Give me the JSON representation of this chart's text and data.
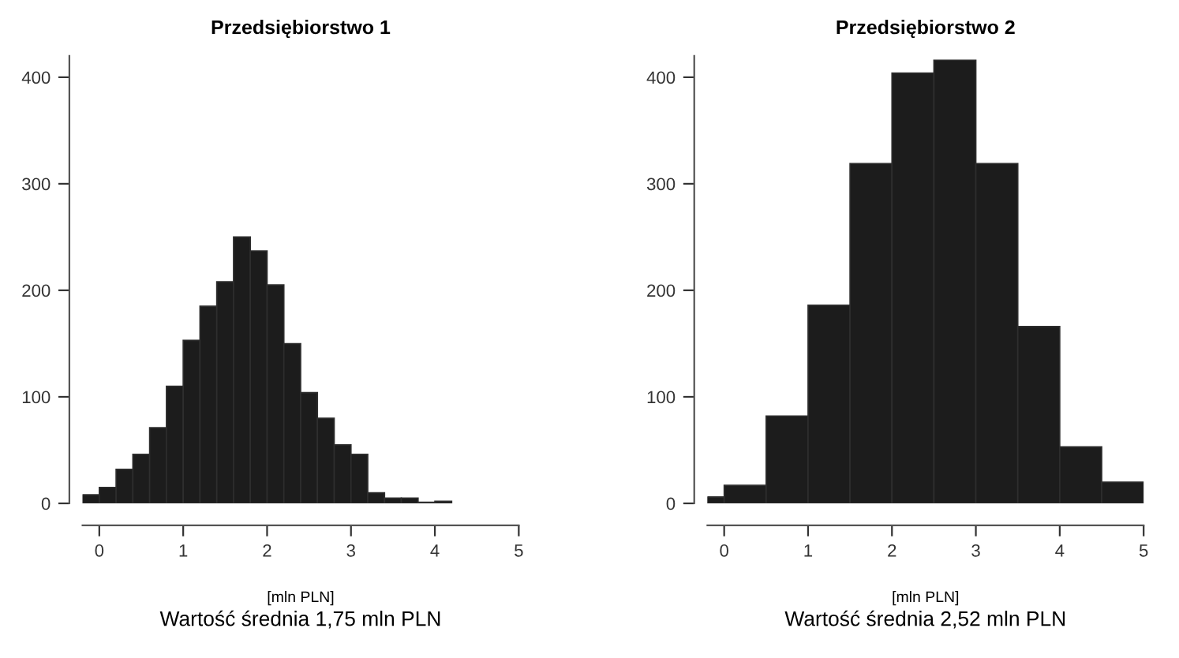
{
  "chart_data": [
    {
      "type": "histogram",
      "title": "Przedsiębiorstwo 1",
      "xlabel": "[mln PLN]",
      "annotations": [
        "Wartość średnia 1,75 mln PLN"
      ],
      "bins": [
        -0.2,
        0,
        0.2,
        0.4,
        0.6,
        0.8,
        1.0,
        1.2,
        1.4,
        1.6,
        1.8,
        2.0,
        2.2,
        2.4,
        2.6,
        2.8,
        3.0,
        3.2,
        3.4,
        3.6,
        3.8,
        4.0,
        4.2
      ],
      "values": [
        8,
        15,
        32,
        46,
        71,
        110,
        153,
        185,
        208,
        250,
        237,
        205,
        150,
        104,
        80,
        55,
        46,
        10,
        5,
        5,
        1,
        2
      ],
      "color": "#1c1c1c",
      "xlim": [
        -0.2,
        5
      ],
      "xticks": [
        0,
        1,
        2,
        3,
        4,
        5
      ],
      "ylim": [
        0,
        420
      ],
      "yticks": [
        0,
        100,
        200,
        300,
        400
      ],
      "grid": false
    },
    {
      "type": "histogram",
      "title": "Przedsiębiorstwo 2",
      "xlabel": "[mln PLN]",
      "annotations": [
        "Wartość średnia 2,52 mln PLN"
      ],
      "bins": [
        -0.2,
        0,
        0.5,
        1.0,
        1.5,
        2.0,
        2.5,
        3.0,
        3.5,
        4.0,
        4.5,
        5.0
      ],
      "values": [
        6,
        17,
        82,
        186,
        319,
        404,
        416,
        319,
        166,
        53,
        20
      ],
      "color": "#1c1c1c",
      "xlim": [
        -0.2,
        5
      ],
      "xticks": [
        0,
        1,
        2,
        3,
        4,
        5
      ],
      "ylim": [
        0,
        420
      ],
      "yticks": [
        0,
        100,
        200,
        300,
        400
      ],
      "grid": false
    }
  ]
}
